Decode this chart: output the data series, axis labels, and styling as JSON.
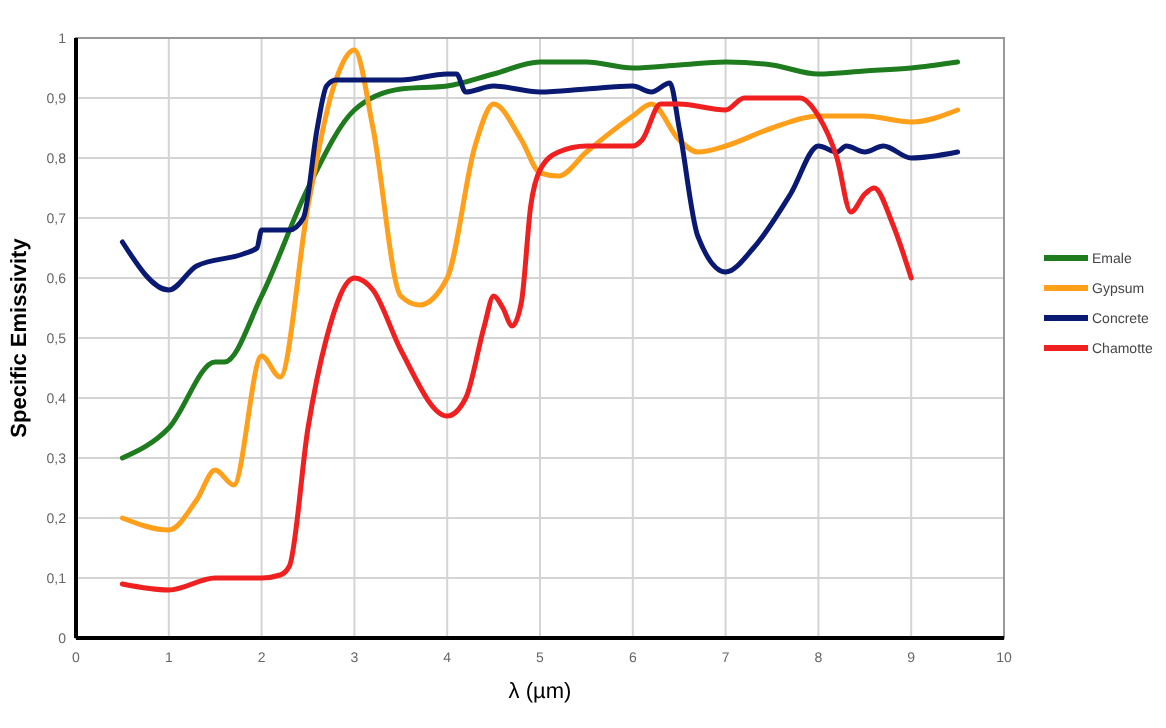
{
  "chart_data": {
    "type": "line",
    "xlabel": "λ (µm)",
    "ylabel": "Specific Emissivity",
    "xlim": [
      0,
      10
    ],
    "xticks": [
      0,
      1,
      2,
      3,
      4,
      5,
      6,
      7,
      8,
      9,
      10
    ],
    "ylim": [
      0,
      1
    ],
    "yticks": [
      0,
      {
        "value": 0.1,
        "label": "0,1"
      },
      {
        "value": 0.2,
        "label": "0,2"
      },
      {
        "value": 0.3,
        "label": "0,3"
      },
      {
        "value": 0.4,
        "label": "0,4"
      },
      {
        "value": 0.5,
        "label": "0,5"
      },
      {
        "value": 0.6,
        "label": "0,6"
      },
      {
        "value": 0.7,
        "label": "0,7"
      },
      {
        "value": 0.8,
        "label": "0,8"
      },
      {
        "value": 0.9,
        "label": "0,9"
      },
      1
    ],
    "grid": true,
    "legend": "right",
    "marker": "none",
    "line_style": "solid",
    "series": [
      {
        "name": "Emale",
        "color": "#1e7b1e",
        "x": [
          0.5,
          1,
          1.5,
          1.6,
          2,
          2.5,
          3,
          3.5,
          4,
          4.5,
          5,
          5.5,
          6,
          6.5,
          7,
          7.5,
          8,
          8.5,
          9,
          9.5
        ],
        "values": [
          0.3,
          0.35,
          0.46,
          0.46,
          0.57,
          0.75,
          0.88,
          0.915,
          0.92,
          0.94,
          0.96,
          0.96,
          0.95,
          0.955,
          0.96,
          0.955,
          0.94,
          0.945,
          0.95,
          0.96
        ]
      },
      {
        "name": "Gypsum",
        "color": "#ff9f1a",
        "x": [
          0.5,
          1,
          1.3,
          1.5,
          1.7,
          2,
          2.2,
          2.5,
          2.8,
          3,
          3.2,
          3.5,
          3.7,
          4,
          4.3,
          4.5,
          4.8,
          5,
          5.2,
          5.5,
          6,
          6.2,
          6.5,
          6.7,
          7,
          7.5,
          8,
          8.5,
          9,
          9.5
        ],
        "values": [
          0.2,
          0.18,
          0.23,
          0.28,
          0.255,
          0.47,
          0.435,
          0.72,
          0.93,
          0.98,
          0.85,
          0.57,
          0.555,
          0.6,
          0.82,
          0.89,
          0.83,
          0.775,
          0.77,
          0.81,
          0.87,
          0.89,
          0.83,
          0.81,
          0.82,
          0.85,
          0.87,
          0.87,
          0.86,
          0.88
        ]
      },
      {
        "name": "Concrete",
        "color": "#0a1a72",
        "x": [
          0.5,
          1,
          1.3,
          1.8,
          1.95,
          2,
          2.3,
          2.45,
          2.6,
          2.7,
          2.8,
          3,
          3.5,
          4,
          4.1,
          4.2,
          4.5,
          5,
          5.5,
          6,
          6.2,
          6.4,
          6.5,
          6.7,
          7,
          7.3,
          7.7,
          8,
          8.2,
          8.3,
          8.5,
          8.7,
          9,
          9.5
        ],
        "values": [
          0.66,
          0.58,
          0.62,
          0.64,
          0.65,
          0.68,
          0.68,
          0.7,
          0.85,
          0.92,
          0.93,
          0.93,
          0.93,
          0.94,
          0.94,
          0.91,
          0.92,
          0.91,
          0.915,
          0.92,
          0.91,
          0.925,
          0.85,
          0.67,
          0.61,
          0.65,
          0.74,
          0.82,
          0.81,
          0.82,
          0.81,
          0.82,
          0.8,
          0.81
        ]
      },
      {
        "name": "Chamotte",
        "color": "#f02020",
        "x": [
          0.5,
          1,
          1.5,
          2,
          2.2,
          2.3,
          2.5,
          2.7,
          3,
          3.2,
          3.5,
          4,
          4.2,
          4.4,
          4.5,
          4.6,
          4.7,
          4.8,
          4.9,
          5,
          5.2,
          5.5,
          6,
          6.1,
          6.3,
          6.5,
          7,
          7.2,
          7.5,
          7.8,
          8,
          8.2,
          8.35,
          8.5,
          8.6,
          8.8,
          9
        ],
        "values": [
          0.09,
          0.08,
          0.1,
          0.1,
          0.105,
          0.12,
          0.35,
          0.5,
          0.6,
          0.58,
          0.48,
          0.37,
          0.4,
          0.52,
          0.57,
          0.55,
          0.52,
          0.56,
          0.72,
          0.78,
          0.81,
          0.82,
          0.82,
          0.83,
          0.89,
          0.89,
          0.88,
          0.9,
          0.9,
          0.9,
          0.87,
          0.8,
          0.71,
          0.74,
          0.75,
          0.69,
          0.6
        ]
      }
    ]
  }
}
